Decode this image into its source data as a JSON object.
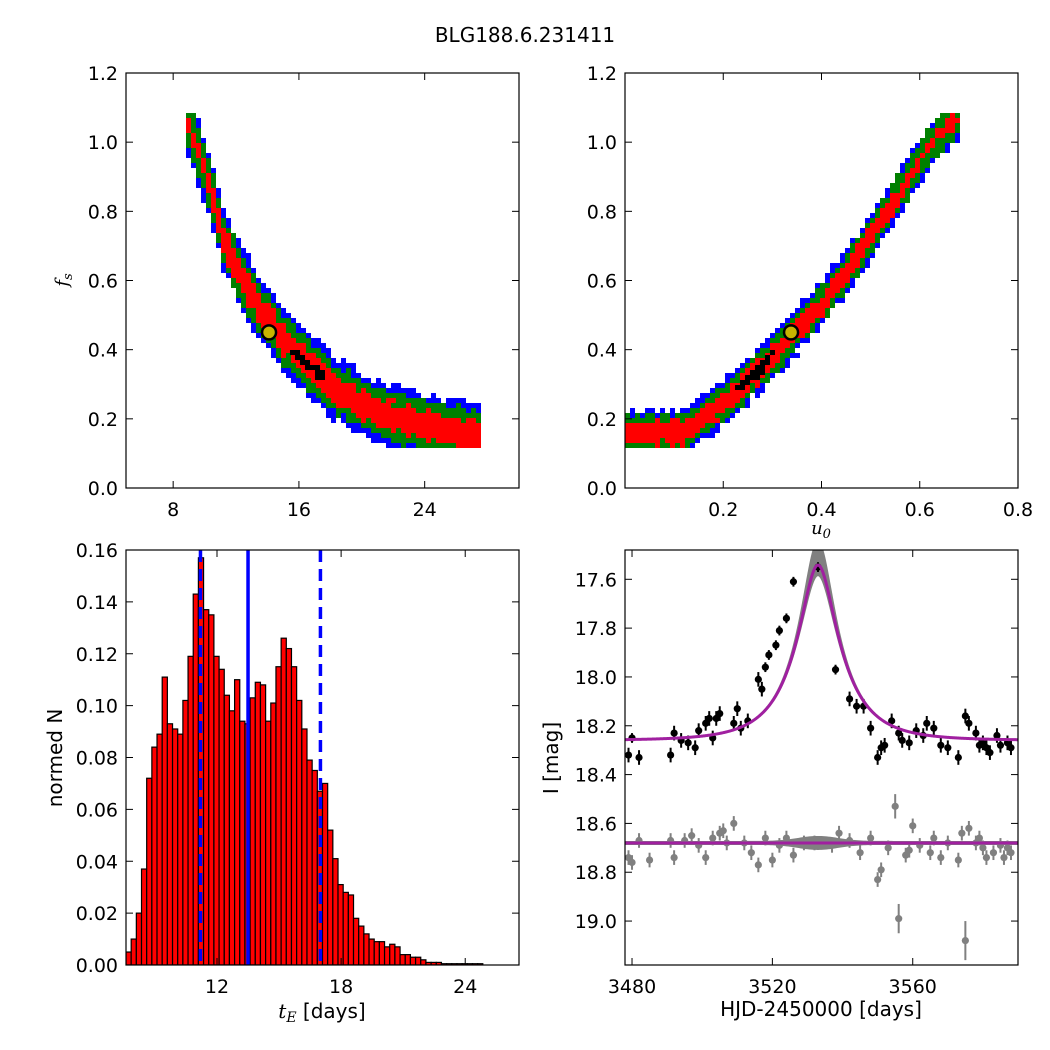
{
  "figure": {
    "title": "BLG188.6.231411"
  },
  "colors": {
    "sigma1": "#ff0000",
    "sigma2": "#008000",
    "sigma3": "#0000ff",
    "samples": "#000000",
    "best_fill": "#c8b400",
    "bar": "#ff0000",
    "median_line": "#0000ff",
    "model_curve": "#a020a0",
    "data_ogle": "#000000",
    "data_resid": "#808080",
    "model_band": "#808080"
  },
  "chart_data": [
    {
      "id": "fs_vs_tE",
      "type": "heatmap",
      "title": "",
      "xlabel": "",
      "ylabel": "f_s",
      "xlim": [
        5,
        30
      ],
      "ylim": [
        0.0,
        1.2
      ],
      "xticks": [
        "8",
        "16",
        "24"
      ],
      "yticks": [
        "0.0",
        "0.2",
        "0.4",
        "0.6",
        "0.8",
        "1.0",
        "1.2"
      ],
      "best_fit": {
        "x": 14.1,
        "y": 0.45
      },
      "band_centerline": [
        [
          8.8,
          1.07
        ],
        [
          9.5,
          0.98
        ],
        [
          10.5,
          0.85
        ],
        [
          11.2,
          0.72
        ],
        [
          12.2,
          0.62
        ],
        [
          13.5,
          0.52
        ],
        [
          15.0,
          0.43
        ],
        [
          16.5,
          0.36
        ],
        [
          18.5,
          0.28
        ],
        [
          21.0,
          0.22
        ],
        [
          24.0,
          0.18
        ],
        [
          27.5,
          0.15
        ]
      ],
      "band_halfwidth_sigma1": 0.04,
      "band_halfwidth_sigma2": 0.07,
      "band_halfwidth_sigma3": 0.09,
      "sample_cluster": {
        "x": [
          15.5,
          17.5
        ],
        "y": [
          0.29,
          0.38
        ]
      }
    },
    {
      "id": "fs_vs_u0",
      "type": "heatmap",
      "title": "",
      "xlabel": "u_0",
      "ylabel": "",
      "xlim": [
        0.0,
        0.8
      ],
      "ylim": [
        0.0,
        1.2
      ],
      "xticks": [
        "0.2",
        "0.4",
        "0.6",
        "0.8"
      ],
      "yticks": [
        "0.0",
        "0.2",
        "0.4",
        "0.6",
        "0.8",
        "1.0",
        "1.2"
      ],
      "best_fit": {
        "x": 0.338,
        "y": 0.45
      },
      "band_centerline": [
        [
          0.0,
          0.16
        ],
        [
          0.12,
          0.16
        ],
        [
          0.17,
          0.21
        ],
        [
          0.22,
          0.27
        ],
        [
          0.28,
          0.35
        ],
        [
          0.34,
          0.44
        ],
        [
          0.4,
          0.53
        ],
        [
          0.46,
          0.64
        ],
        [
          0.52,
          0.77
        ],
        [
          0.58,
          0.9
        ],
        [
          0.63,
          1.01
        ],
        [
          0.68,
          1.07
        ]
      ],
      "band_halfwidth_sigma1": 0.03,
      "band_halfwidth_sigma2": 0.05,
      "band_halfwidth_sigma3": 0.065,
      "sample_cluster": {
        "x": [
          0.23,
          0.3
        ],
        "y": [
          0.28,
          0.37
        ]
      }
    },
    {
      "id": "tE_histogram",
      "type": "bar",
      "title": "",
      "xlabel": "t_E [days]",
      "ylabel": "normed N",
      "xlim": [
        7.6,
        26.6
      ],
      "ylim": [
        0.0,
        0.16
      ],
      "xticks": [
        "12",
        "18",
        "24"
      ],
      "yticks": [
        "0.00",
        "0.02",
        "0.04",
        "0.06",
        "0.08",
        "0.10",
        "0.12",
        "0.14",
        "0.16"
      ],
      "bin_start": 7.6,
      "bin_width": 0.25,
      "values": [
        0.005,
        0.01,
        0.02,
        0.037,
        0.072,
        0.084,
        0.089,
        0.111,
        0.093,
        0.091,
        0.089,
        0.102,
        0.119,
        0.143,
        0.157,
        0.137,
        0.135,
        0.119,
        0.114,
        0.104,
        0.098,
        0.11,
        0.094,
        0.093,
        0.103,
        0.109,
        0.108,
        0.094,
        0.101,
        0.115,
        0.126,
        0.122,
        0.115,
        0.102,
        0.091,
        0.079,
        0.075,
        0.067,
        0.07,
        0.052,
        0.041,
        0.031,
        0.028,
        0.027,
        0.018,
        0.015,
        0.012,
        0.01,
        0.009,
        0.009,
        0.007,
        0.008,
        0.007,
        0.004,
        0.004,
        0.003,
        0.003,
        0.002,
        0.001,
        0.001,
        0.001,
        0.0005,
        0.0005,
        0.0005,
        0.0005,
        0.0005,
        0.0005,
        0.0005,
        0.0005
      ],
      "median": 13.5,
      "ci_low": 11.2,
      "ci_high": 17.0
    },
    {
      "id": "light_curve",
      "type": "scatter",
      "title": "",
      "xlabel": "HJD-2450000 [days]",
      "ylabel": "I [mag]",
      "xlim": [
        3478,
        3590
      ],
      "ylim": [
        19.18,
        17.48
      ],
      "xticks": [
        "3480",
        "3520",
        "3560"
      ],
      "yticks": [
        "17.6",
        "17.8",
        "18.0",
        "18.2",
        "18.4",
        "18.6",
        "18.8",
        "19.0"
      ],
      "model": {
        "t0": 3533.0,
        "tE": 14.1,
        "u0": 0.338,
        "fs": 0.45,
        "baseline": 18.26
      },
      "residual_offset": 18.68,
      "observations": [
        [
          3479,
          18.32,
          0.03
        ],
        [
          3480,
          18.25,
          0.02
        ],
        [
          3482,
          18.33,
          0.03
        ],
        [
          3491,
          18.32,
          0.03
        ],
        [
          3492,
          18.23,
          0.03
        ],
        [
          3494,
          18.26,
          0.03
        ],
        [
          3496,
          18.27,
          0.03
        ],
        [
          3498,
          18.29,
          0.03
        ],
        [
          3499,
          18.22,
          0.03
        ],
        [
          3501,
          18.19,
          0.03
        ],
        [
          3502,
          18.17,
          0.03
        ],
        [
          3503,
          18.25,
          0.03
        ],
        [
          3504,
          18.17,
          0.03
        ],
        [
          3505,
          18.15,
          0.03
        ],
        [
          3509,
          18.19,
          0.03
        ],
        [
          3510,
          18.13,
          0.03
        ],
        [
          3511,
          18.21,
          0.03
        ],
        [
          3513,
          18.18,
          0.03
        ],
        [
          3516,
          18.01,
          0.03
        ],
        [
          3517,
          18.05,
          0.03
        ],
        [
          3518,
          17.96,
          0.02
        ],
        [
          3519,
          17.91,
          0.02
        ],
        [
          3521,
          17.87,
          0.02
        ],
        [
          3522,
          17.81,
          0.02
        ],
        [
          3524,
          17.76,
          0.02
        ],
        [
          3526,
          17.61,
          0.02
        ],
        [
          3533,
          17.55,
          0.02
        ],
        [
          3538,
          17.97,
          0.02
        ],
        [
          3542,
          18.09,
          0.03
        ],
        [
          3544,
          18.12,
          0.03
        ],
        [
          3546,
          18.12,
          0.03
        ],
        [
          3548,
          18.21,
          0.03
        ],
        [
          3550,
          18.33,
          0.03
        ],
        [
          3551,
          18.29,
          0.03
        ],
        [
          3552,
          18.28,
          0.03
        ],
        [
          3554,
          18.18,
          0.03
        ],
        [
          3556,
          18.23,
          0.03
        ],
        [
          3557,
          18.26,
          0.03
        ],
        [
          3559,
          18.27,
          0.03
        ],
        [
          3561,
          18.22,
          0.03
        ],
        [
          3563,
          18.24,
          0.03
        ],
        [
          3564,
          18.19,
          0.03
        ],
        [
          3566,
          18.21,
          0.03
        ],
        [
          3568,
          18.28,
          0.03
        ],
        [
          3570,
          18.29,
          0.03
        ],
        [
          3573,
          18.33,
          0.03
        ],
        [
          3575,
          18.16,
          0.03
        ],
        [
          3576,
          18.19,
          0.03
        ],
        [
          3578,
          18.23,
          0.03
        ],
        [
          3579,
          18.28,
          0.03
        ],
        [
          3580,
          18.27,
          0.03
        ],
        [
          3581,
          18.29,
          0.03
        ],
        [
          3582,
          18.31,
          0.03
        ],
        [
          3584,
          18.24,
          0.03
        ],
        [
          3585,
          18.28,
          0.03
        ],
        [
          3587,
          18.27,
          0.03
        ],
        [
          3588,
          18.29,
          0.03
        ]
      ],
      "residuals": [
        [
          3479,
          18.74,
          0.03
        ],
        [
          3480,
          18.76,
          0.03
        ],
        [
          3482,
          18.67,
          0.03
        ],
        [
          3485,
          18.75,
          0.03
        ],
        [
          3491,
          18.67,
          0.03
        ],
        [
          3492,
          18.74,
          0.03
        ],
        [
          3495,
          18.67,
          0.03
        ],
        [
          3497,
          18.65,
          0.03
        ],
        [
          3499,
          18.69,
          0.03
        ],
        [
          3501,
          18.74,
          0.03
        ],
        [
          3503,
          18.66,
          0.03
        ],
        [
          3505,
          18.64,
          0.03
        ],
        [
          3506,
          18.63,
          0.03
        ],
        [
          3507,
          18.68,
          0.03
        ],
        [
          3509,
          18.6,
          0.03
        ],
        [
          3512,
          18.68,
          0.03
        ],
        [
          3514,
          18.72,
          0.03
        ],
        [
          3516,
          18.77,
          0.03
        ],
        [
          3518,
          18.66,
          0.03
        ],
        [
          3520,
          18.75,
          0.03
        ],
        [
          3522,
          18.69,
          0.03
        ],
        [
          3524,
          18.66,
          0.03
        ],
        [
          3526,
          18.73,
          0.03
        ],
        [
          3529,
          18.68,
          0.03
        ],
        [
          3532,
          18.68,
          0.03
        ],
        [
          3537,
          18.69,
          0.03
        ],
        [
          3539,
          18.64,
          0.03
        ],
        [
          3542,
          18.67,
          0.03
        ],
        [
          3545,
          18.72,
          0.03
        ],
        [
          3548,
          18.66,
          0.03
        ],
        [
          3550,
          18.83,
          0.03
        ],
        [
          3551,
          18.79,
          0.03
        ],
        [
          3553,
          18.7,
          0.03
        ],
        [
          3555,
          18.53,
          0.05
        ],
        [
          3556,
          18.99,
          0.06
        ],
        [
          3558,
          18.73,
          0.03
        ],
        [
          3559,
          18.71,
          0.03
        ],
        [
          3560,
          18.61,
          0.03
        ],
        [
          3562,
          18.69,
          0.03
        ],
        [
          3565,
          18.72,
          0.03
        ],
        [
          3566,
          18.66,
          0.03
        ],
        [
          3568,
          18.74,
          0.03
        ],
        [
          3570,
          18.68,
          0.03
        ],
        [
          3573,
          18.75,
          0.03
        ],
        [
          3574,
          18.64,
          0.03
        ],
        [
          3575,
          19.08,
          0.08
        ],
        [
          3576,
          18.62,
          0.03
        ],
        [
          3578,
          18.68,
          0.03
        ],
        [
          3579,
          18.66,
          0.03
        ],
        [
          3580,
          18.7,
          0.03
        ],
        [
          3581,
          18.74,
          0.03
        ],
        [
          3583,
          18.72,
          0.03
        ],
        [
          3585,
          18.69,
          0.03
        ],
        [
          3586,
          18.74,
          0.03
        ],
        [
          3587,
          18.7,
          0.03
        ],
        [
          3588,
          18.72,
          0.03
        ]
      ]
    }
  ]
}
